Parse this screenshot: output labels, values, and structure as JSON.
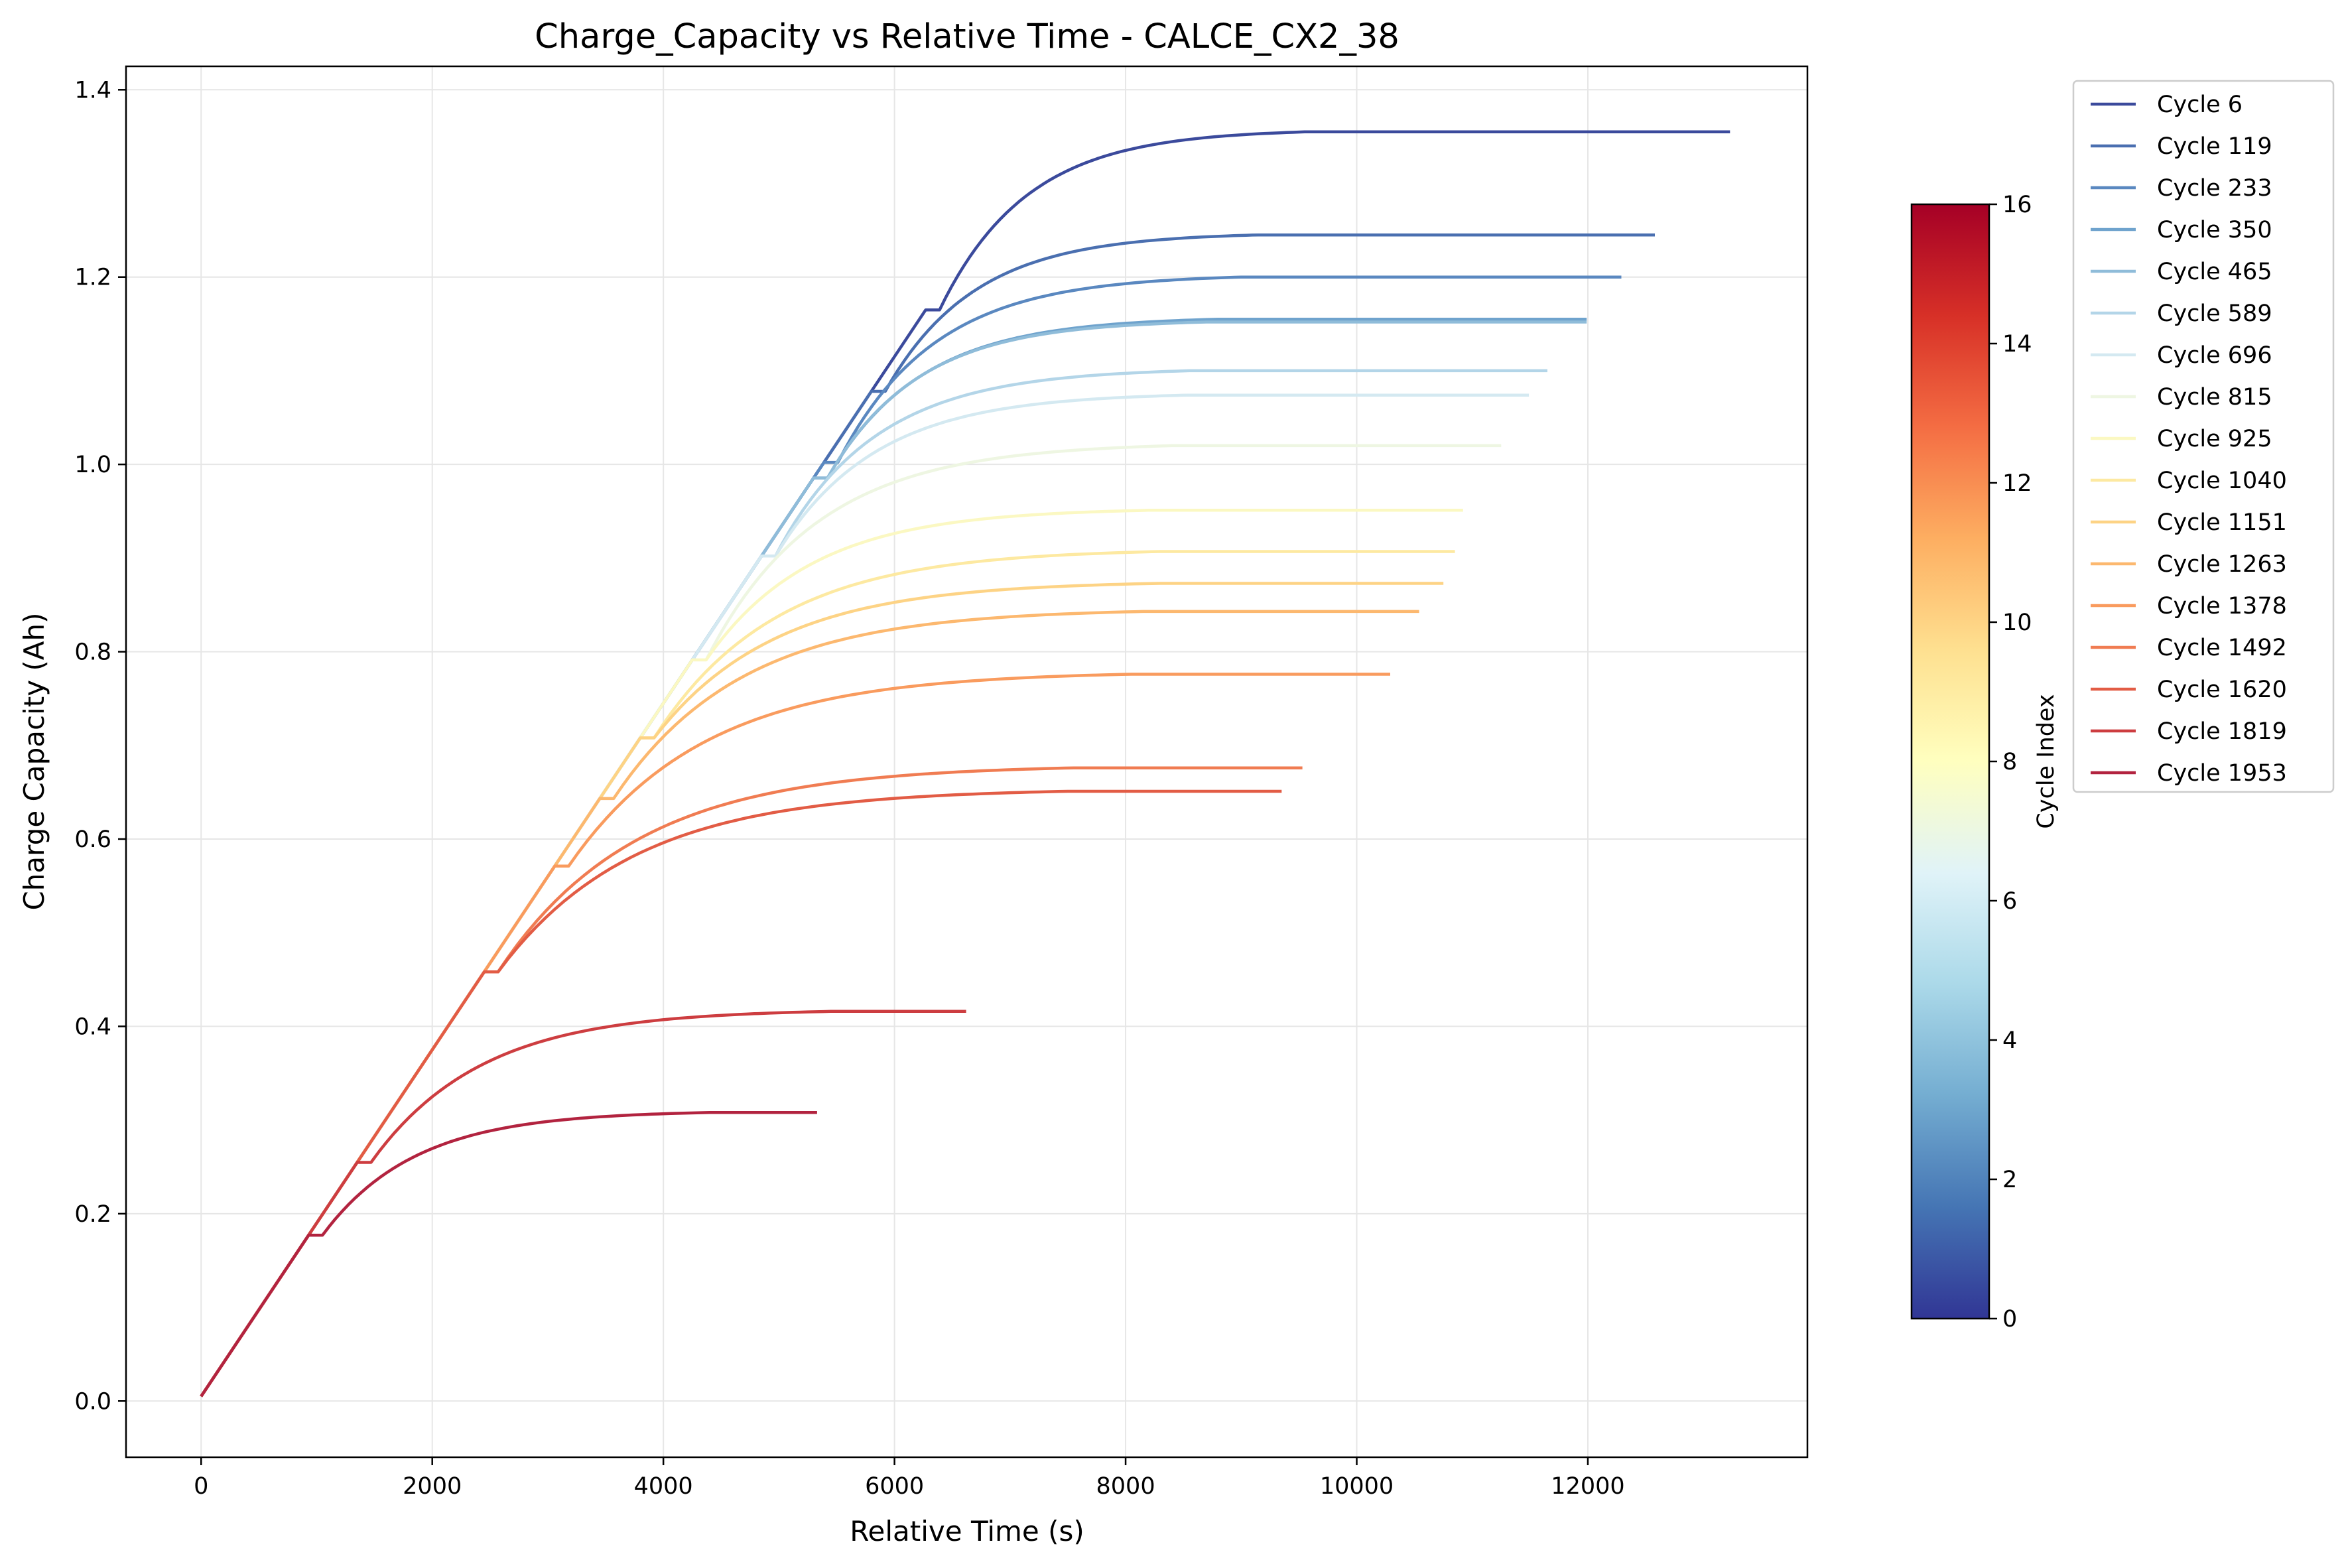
{
  "chart_data": {
    "type": "line",
    "title": "Charge_Capacity vs Relative Time - CALCE_CX2_38",
    "xlabel": "Relative Time (s)",
    "ylabel": "Charge Capacity (Ah)",
    "xlim": [
      -650,
      13900
    ],
    "ylim": [
      -0.06,
      1.425
    ],
    "xticks": [
      0,
      2000,
      4000,
      6000,
      8000,
      10000,
      12000
    ],
    "xtick_labels": [
      "0",
      "2000",
      "4000",
      "6000",
      "8000",
      "10000",
      "12000"
    ],
    "yticks": [
      0.0,
      0.2,
      0.4,
      0.6,
      0.8,
      1.0,
      1.2,
      1.4
    ],
    "ytick_labels": [
      "0.0",
      "0.2",
      "0.4",
      "0.6",
      "0.8",
      "1.0",
      "1.2",
      "1.4"
    ],
    "grid": true,
    "legend_position": "outside-right-top",
    "colorbar": {
      "label": "Cycle Index",
      "min": 0,
      "max": 16,
      "ticks": [
        0,
        2,
        4,
        6,
        8,
        10,
        12,
        14,
        16
      ],
      "tick_labels": [
        "0",
        "2",
        "4",
        "6",
        "8",
        "10",
        "12",
        "14",
        "16"
      ],
      "colors": [
        "#313695",
        "#4575b4",
        "#74add1",
        "#abd9e9",
        "#e0f3f8",
        "#ffffbf",
        "#fee090",
        "#fdae61",
        "#f46d43",
        "#d73027",
        "#a50026"
      ]
    },
    "series": [
      {
        "name": "Cycle 6",
        "color": "#3b4a9c",
        "cap": 1.355,
        "cv_start": 6270,
        "cv_end": 9550,
        "x_end": 13230
      },
      {
        "name": "Cycle 119",
        "color": "#4a6fb0",
        "cap": 1.245,
        "cv_start": 5800,
        "cv_end": 9150,
        "x_end": 12580
      },
      {
        "name": "Cycle 233",
        "color": "#5a88c0",
        "cap": 1.2,
        "cv_start": 5390,
        "cv_end": 9000,
        "x_end": 12290
      },
      {
        "name": "Cycle 350",
        "color": "#6fa3cd",
        "cap": 1.155,
        "cv_start": 5300,
        "cv_end": 8800,
        "x_end": 11990
      },
      {
        "name": "Cycle 465",
        "color": "#8fbcd9",
        "cap": 1.152,
        "cv_start": 5300,
        "cv_end": 8700,
        "x_end": 11990
      },
      {
        "name": "Cycle 589",
        "color": "#b3d5e8",
        "cap": 1.1,
        "cv_start": 4850,
        "cv_end": 8550,
        "x_end": 11650
      },
      {
        "name": "Cycle 696",
        "color": "#d4e9f1",
        "cap": 1.074,
        "cv_start": 4850,
        "cv_end": 8550,
        "x_end": 11490
      },
      {
        "name": "Cycle 815",
        "color": "#eef6e2",
        "cap": 1.02,
        "cv_start": 4250,
        "cv_end": 8400,
        "x_end": 11250
      },
      {
        "name": "Cycle 925",
        "color": "#fbf8c2",
        "cap": 0.951,
        "cv_start": 4250,
        "cv_end": 8200,
        "x_end": 10920
      },
      {
        "name": "Cycle 1040",
        "color": "#fde9a1",
        "cap": 0.907,
        "cv_start": 3800,
        "cv_end": 8300,
        "x_end": 10850
      },
      {
        "name": "Cycle 1151",
        "color": "#fdd385",
        "cap": 0.873,
        "cv_start": 3800,
        "cv_end": 8300,
        "x_end": 10750
      },
      {
        "name": "Cycle 1263",
        "color": "#fcb86f",
        "cap": 0.843,
        "cv_start": 3450,
        "cv_end": 8150,
        "x_end": 10540
      },
      {
        "name": "Cycle 1378",
        "color": "#f99b5e",
        "cap": 0.776,
        "cv_start": 3060,
        "cv_end": 8050,
        "x_end": 10290
      },
      {
        "name": "Cycle 1492",
        "color": "#f07c52",
        "cap": 0.676,
        "cv_start": 2450,
        "cv_end": 7550,
        "x_end": 9530
      },
      {
        "name": "Cycle 1620",
        "color": "#e25c45",
        "cap": 0.651,
        "cv_start": 2450,
        "cv_end": 7500,
        "x_end": 9350
      },
      {
        "name": "Cycle 1819",
        "color": "#cd3d40",
        "cap": 0.416,
        "cv_start": 1350,
        "cv_end": 5450,
        "x_end": 6620
      },
      {
        "name": "Cycle 1953",
        "color": "#b2233f",
        "cap": 0.308,
        "cv_start": 930,
        "cv_end": 4400,
        "x_end": 5330
      }
    ]
  }
}
